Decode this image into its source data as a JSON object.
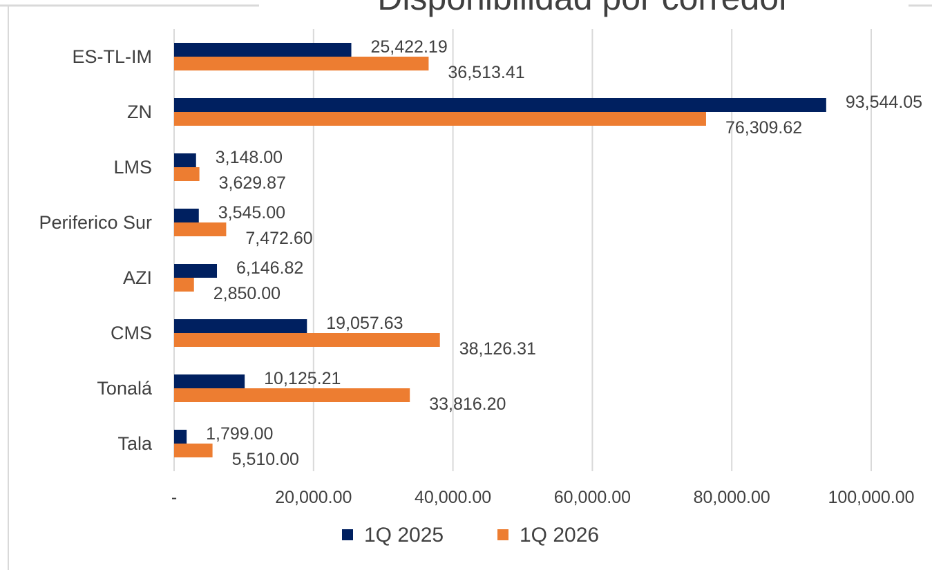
{
  "chart_data": {
    "type": "bar",
    "orientation": "horizontal",
    "title": "Disponibilidad por corredor",
    "categories": [
      "ES-TL-IM",
      "ZN",
      "LMS",
      "Periferico Sur",
      "AZI",
      "CMS",
      "Tonalá",
      "Tala"
    ],
    "series": [
      {
        "name": "1Q 2025",
        "color": "#002060",
        "values": [
          25422.19,
          93544.05,
          3148.0,
          3545.0,
          6146.82,
          19057.63,
          10125.21,
          1799.0
        ],
        "value_labels": [
          "25,422.19",
          "93,544.05",
          "3,148.00",
          "3,545.00",
          "6,146.82",
          "19,057.63",
          "10,125.21",
          "1,799.00"
        ]
      },
      {
        "name": "1Q 2026",
        "color": "#ed7d31",
        "values": [
          36513.41,
          76309.62,
          3629.87,
          7472.6,
          2850.0,
          38126.31,
          33816.2,
          5510.0
        ],
        "value_labels": [
          "36,513.41",
          "76,309.62",
          "3,629.87",
          "7,472.60",
          "2,850.00",
          "38,126.31",
          "33,816.20",
          "5,510.00"
        ]
      }
    ],
    "xlim": [
      0,
      100000
    ],
    "xticks": [
      {
        "value": 0,
        "label": "-"
      },
      {
        "value": 20000,
        "label": "20,000.00"
      },
      {
        "value": 40000,
        "label": "40,000.00"
      },
      {
        "value": 60000,
        "label": "60,000.00"
      },
      {
        "value": 80000,
        "label": "80,000.00"
      },
      {
        "value": 100000,
        "label": "100,000.00"
      }
    ],
    "grid": true,
    "legend": "bottom"
  }
}
